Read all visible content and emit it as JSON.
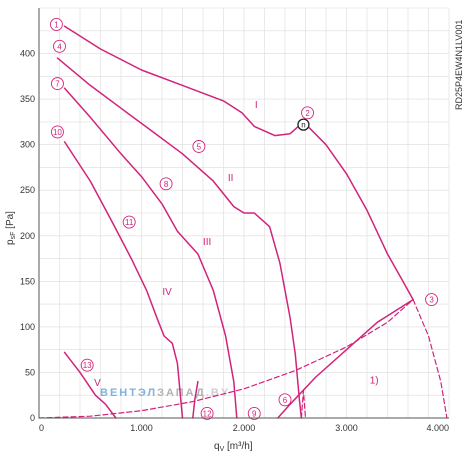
{
  "chart_data": {
    "type": "line",
    "model": "RD25P4EW4N1LV001",
    "xlabel": "q",
    "xlabel_sub": "V",
    "xlabel_unit": " [m³/h]",
    "ylabel": "p",
    "ylabel_sub": "sF",
    "ylabel_unit": " [Pa]",
    "xlim": [
      0,
      4000
    ],
    "ylim": [
      0,
      450
    ],
    "xticks": [
      {
        "value": 0,
        "label": "0"
      },
      {
        "value": 1000,
        "label": "1.000"
      },
      {
        "value": 2000,
        "label": "2.000"
      },
      {
        "value": 3000,
        "label": "3.000"
      },
      {
        "value": 4000,
        "label": "4.000"
      }
    ],
    "yticks": [
      {
        "value": 0,
        "label": "0"
      },
      {
        "value": 50,
        "label": "50"
      },
      {
        "value": 100,
        "label": "100"
      },
      {
        "value": 150,
        "label": "150"
      },
      {
        "value": 200,
        "label": "200"
      },
      {
        "value": 250,
        "label": "250"
      },
      {
        "value": 300,
        "label": "300"
      },
      {
        "value": 350,
        "label": "350"
      },
      {
        "value": 400,
        "label": "400"
      }
    ],
    "grid": true,
    "line_color": "#d2237a",
    "series": [
      {
        "id": "I",
        "style": "solid",
        "points": [
          [
            250,
            430
          ],
          [
            600,
            405
          ],
          [
            1000,
            382
          ],
          [
            1400,
            365
          ],
          [
            1800,
            348
          ],
          [
            1980,
            335
          ],
          [
            2100,
            320
          ],
          [
            2300,
            310
          ],
          [
            2450,
            312
          ],
          [
            2580,
            325
          ],
          [
            2800,
            300
          ],
          [
            3000,
            268
          ],
          [
            3200,
            228
          ],
          [
            3400,
            180
          ],
          [
            3550,
            150
          ],
          [
            3650,
            130
          ]
        ]
      },
      {
        "id": "II",
        "style": "solid",
        "points": [
          [
            180,
            395
          ],
          [
            500,
            365
          ],
          [
            800,
            340
          ],
          [
            1100,
            315
          ],
          [
            1400,
            290
          ],
          [
            1700,
            260
          ],
          [
            1900,
            232
          ],
          [
            2000,
            225
          ],
          [
            2100,
            225
          ],
          [
            2250,
            210
          ],
          [
            2350,
            170
          ],
          [
            2450,
            110
          ],
          [
            2500,
            70
          ],
          [
            2540,
            20
          ],
          [
            2560,
            0
          ]
        ]
      },
      {
        "id": "III",
        "style": "solid",
        "points": [
          [
            250,
            362
          ],
          [
            500,
            330
          ],
          [
            800,
            290
          ],
          [
            1000,
            265
          ],
          [
            1200,
            235
          ],
          [
            1350,
            205
          ],
          [
            1550,
            180
          ],
          [
            1700,
            140
          ],
          [
            1820,
            90
          ],
          [
            1900,
            40
          ],
          [
            1930,
            0
          ]
        ]
      },
      {
        "id": "IV",
        "style": "solid",
        "points": [
          [
            250,
            303
          ],
          [
            500,
            260
          ],
          [
            700,
            218
          ],
          [
            900,
            175
          ],
          [
            1050,
            140
          ],
          [
            1150,
            110
          ],
          [
            1220,
            90
          ],
          [
            1300,
            82
          ],
          [
            1350,
            60
          ],
          [
            1400,
            0
          ]
        ]
      },
      {
        "id": "V",
        "style": "solid",
        "points": [
          [
            250,
            72
          ],
          [
            400,
            50
          ],
          [
            550,
            25
          ],
          [
            650,
            15
          ],
          [
            750,
            0
          ]
        ]
      },
      {
        "id": "sys-1",
        "style": "dashed",
        "points": [
          [
            0,
            0
          ],
          [
            500,
            2
          ],
          [
            1000,
            8
          ],
          [
            1500,
            18
          ],
          [
            2000,
            32
          ],
          [
            2500,
            52
          ],
          [
            3000,
            78
          ],
          [
            3400,
            105
          ],
          [
            3650,
            130
          ]
        ]
      },
      {
        "id": "sys-1-tail",
        "style": "dashed",
        "points": [
          [
            3650,
            130
          ],
          [
            3800,
            90
          ],
          [
            3920,
            40
          ],
          [
            3980,
            0
          ]
        ]
      },
      {
        "id": "sys-2",
        "style": "dashed",
        "points": [
          [
            2560,
            0
          ],
          [
            2580,
            30
          ],
          [
            2600,
            0
          ]
        ]
      },
      {
        "id": "ext-6",
        "style": "solid",
        "points": [
          [
            2330,
            0
          ],
          [
            2450,
            15
          ],
          [
            2700,
            45
          ],
          [
            3000,
            75
          ],
          [
            3300,
            105
          ],
          [
            3650,
            130
          ]
        ]
      },
      {
        "id": "ext-12",
        "style": "solid",
        "points": [
          [
            1500,
            0
          ],
          [
            1520,
            20
          ],
          [
            1550,
            40
          ]
        ]
      }
    ],
    "operating_point": {
      "x": 2580,
      "y": 322,
      "label": "n"
    },
    "roman_labels": [
      {
        "text": "I",
        "x": 2120,
        "y": 340
      },
      {
        "text": "II",
        "x": 1870,
        "y": 260
      },
      {
        "text": "III",
        "x": 1640,
        "y": 190
      },
      {
        "text": "IV",
        "x": 1250,
        "y": 135
      },
      {
        "text": "V",
        "x": 570,
        "y": 35
      },
      {
        "text": "1)",
        "x": 3270,
        "y": 38
      }
    ],
    "circled_labels": [
      {
        "text": "1",
        "x": 170,
        "y": 432
      },
      {
        "text": "2",
        "x": 2620,
        "y": 335
      },
      {
        "text": "3",
        "x": 3830,
        "y": 130
      },
      {
        "text": "4",
        "x": 200,
        "y": 408
      },
      {
        "text": "5",
        "x": 1560,
        "y": 298
      },
      {
        "text": "6",
        "x": 2400,
        "y": 20
      },
      {
        "text": "7",
        "x": 180,
        "y": 367
      },
      {
        "text": "8",
        "x": 1240,
        "y": 257
      },
      {
        "text": "9",
        "x": 2100,
        "y": 5
      },
      {
        "text": "10",
        "x": 180,
        "y": 314
      },
      {
        "text": "11",
        "x": 880,
        "y": 215
      },
      {
        "text": "12",
        "x": 1640,
        "y": 5
      },
      {
        "text": "13",
        "x": 470,
        "y": 58
      }
    ],
    "watermark": {
      "part1": "ВЕНТЭЛ",
      "part2": "ЗАПАД",
      "part3": ".BY"
    }
  }
}
